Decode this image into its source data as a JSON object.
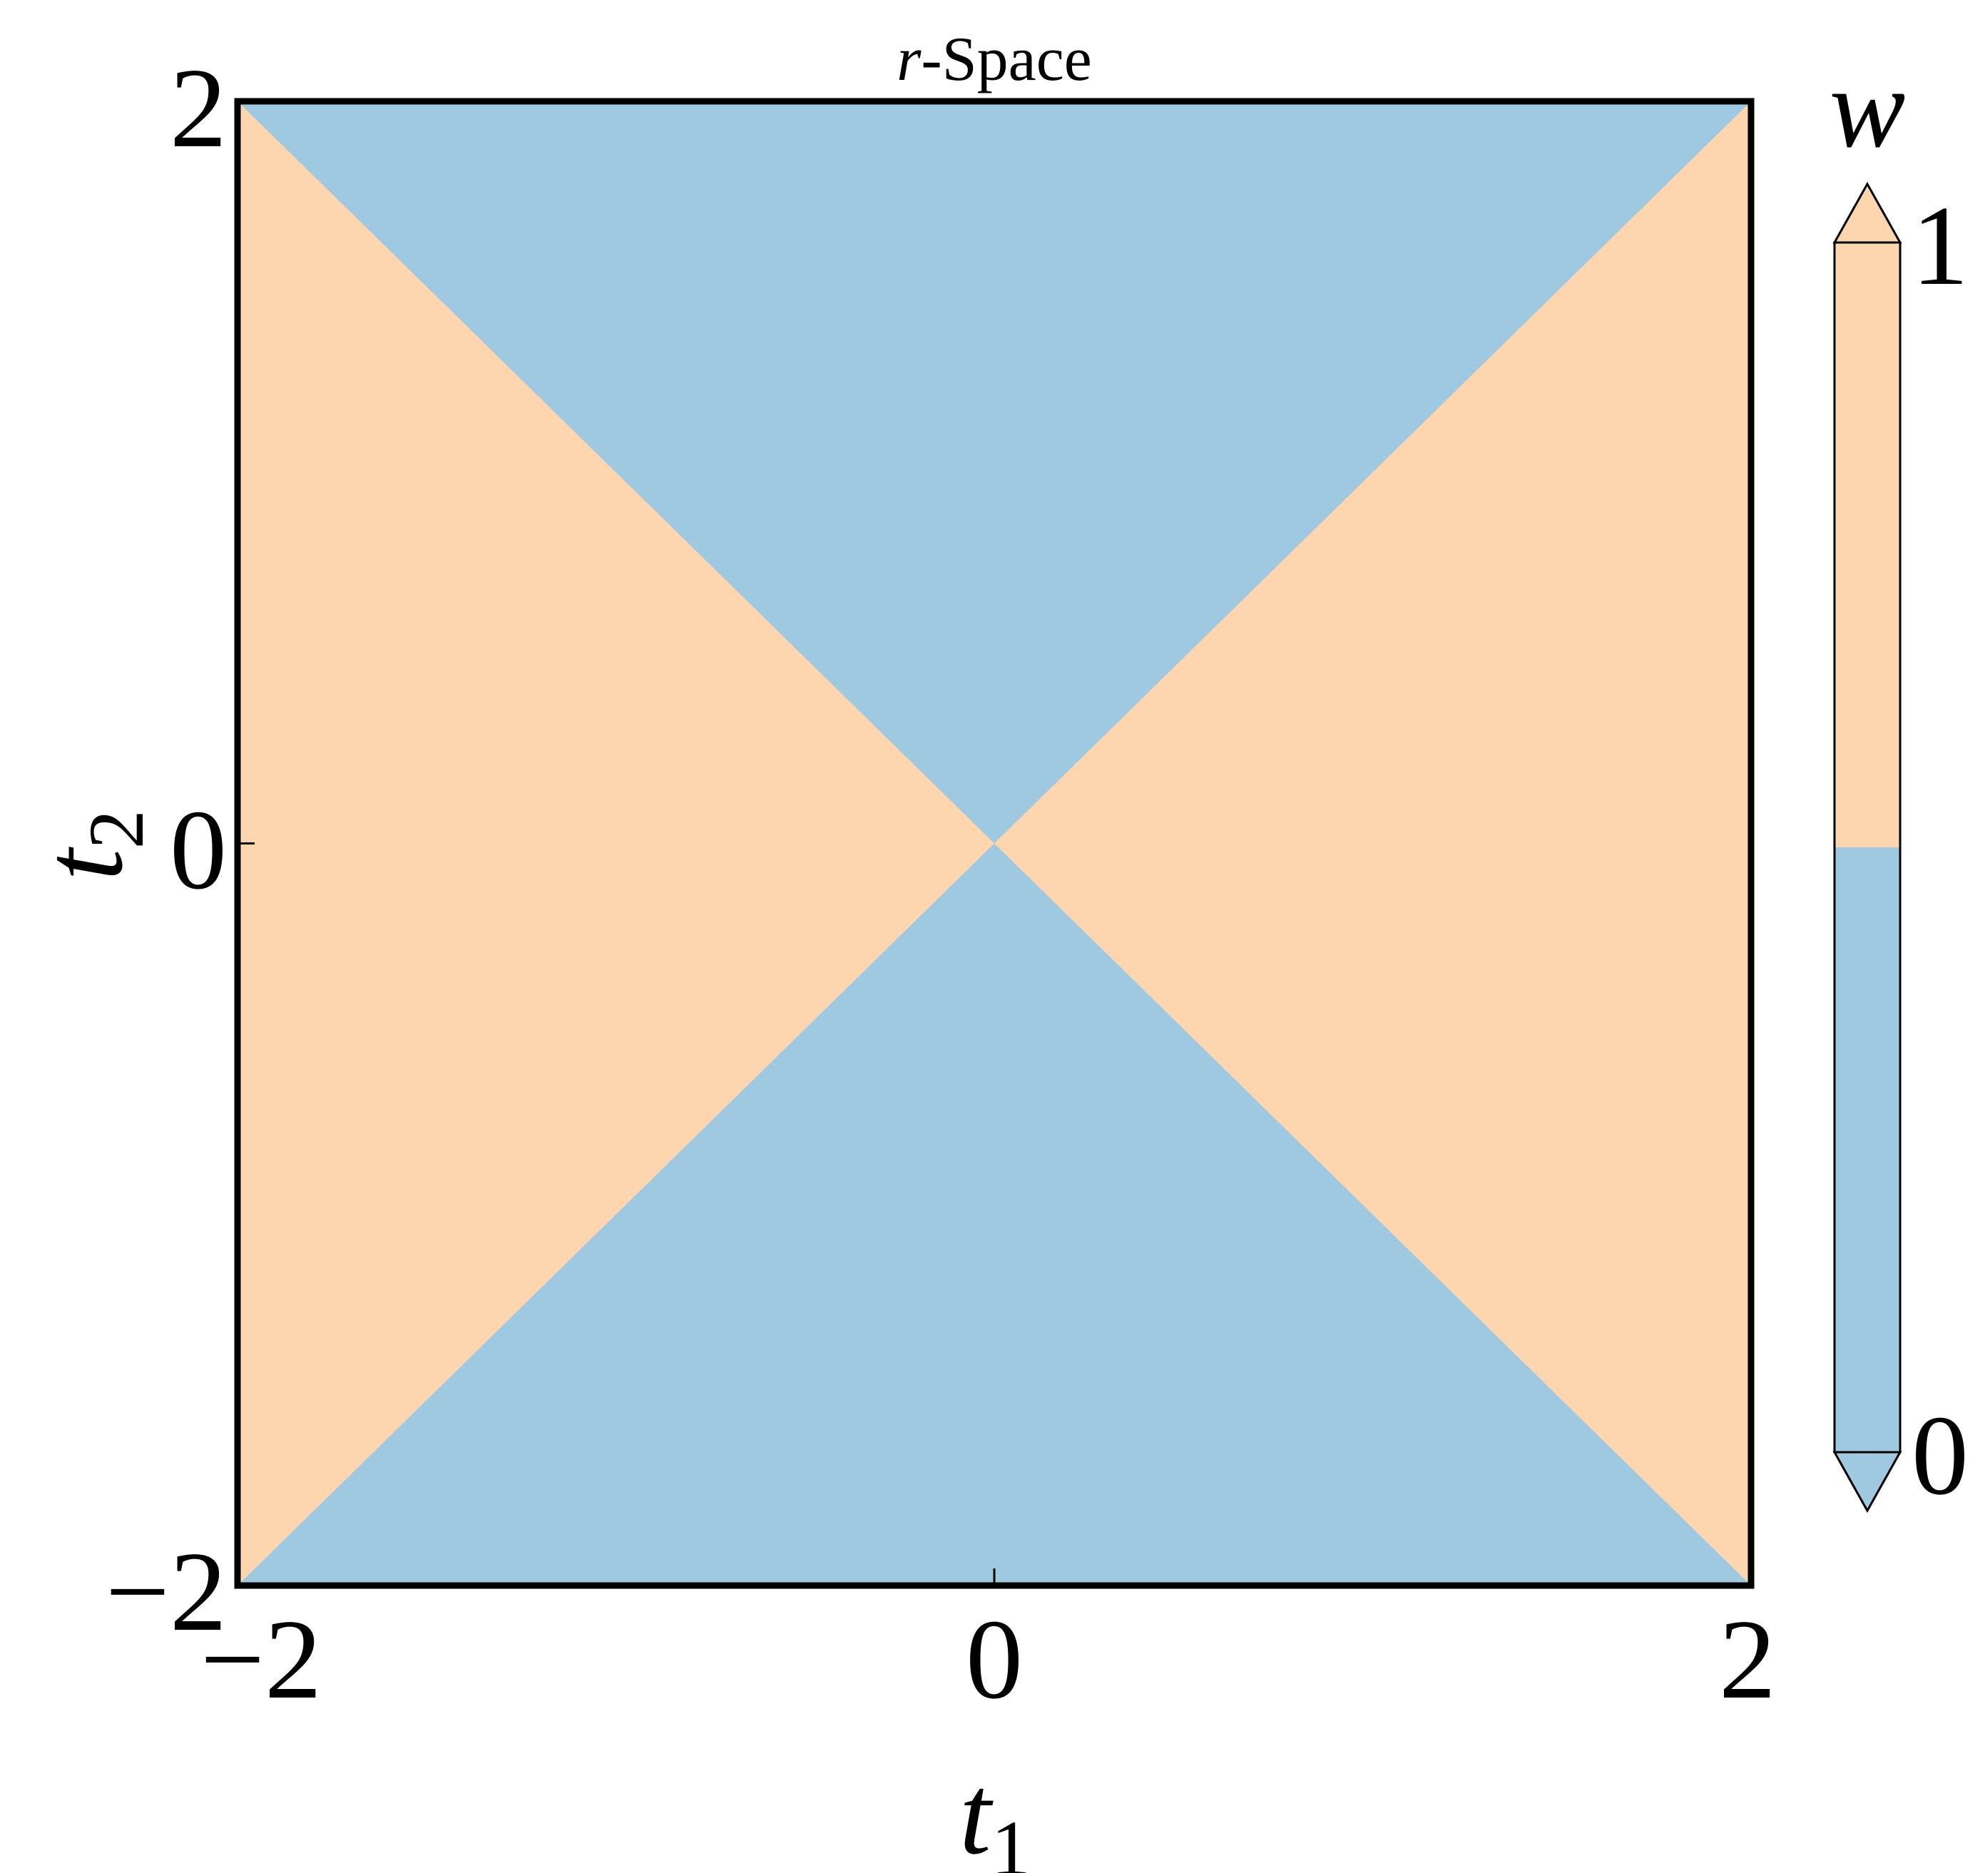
{
  "chart_data": {
    "type": "heatmap",
    "title_italic": "r",
    "title_rest": "-Space",
    "xlabel_var": "t",
    "xlabel_sub": "1",
    "ylabel_var": "t",
    "ylabel_sub": "2",
    "xlim": [
      -2,
      2
    ],
    "ylim": [
      -2,
      2
    ],
    "xticks": [
      -2,
      0,
      2
    ],
    "yticks": [
      -2,
      0,
      2
    ],
    "xtick_labels": [
      "−2",
      "0",
      "2"
    ],
    "ytick_labels": [
      "−2",
      "0",
      "2"
    ],
    "regions": [
      {
        "value": 0,
        "condition": "|t2| > |t1|",
        "color": "#9fc9e0"
      },
      {
        "value": 1,
        "condition": "|t1| > |t2|",
        "color": "#fdd6b0"
      }
    ],
    "colorbar": {
      "label": "w",
      "ticks": [
        0,
        1
      ],
      "tick_labels": [
        "0",
        "1"
      ],
      "extend": "both",
      "colors": [
        "#9fc9e0",
        "#fdd6b0"
      ]
    }
  }
}
